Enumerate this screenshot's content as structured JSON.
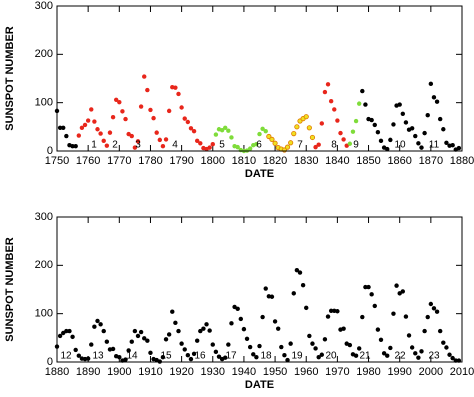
{
  "chart_data": [
    {
      "type": "scatter",
      "xlabel": "DATE",
      "ylabel": "SUNSPOT NUMBER",
      "xlim": [
        1750,
        1880
      ],
      "ylim": [
        0,
        300
      ],
      "xticks": [
        1750,
        1760,
        1770,
        1780,
        1790,
        1800,
        1810,
        1820,
        1830,
        1840,
        1850,
        1860,
        1870,
        1880
      ],
      "yticks": [
        0,
        100,
        200,
        300
      ],
      "cycle_labels": [
        "1",
        "2",
        "3",
        "4",
        "5",
        "6",
        "7",
        "8",
        "9",
        "10",
        "11"
      ],
      "series": [
        {
          "color": "#000000",
          "x": [
            1750,
            1751,
            1752,
            1753,
            1754,
            1755,
            1756,
            1848,
            1849,
            1850,
            1851,
            1852,
            1853,
            1854,
            1855,
            1856,
            1857,
            1858,
            1859,
            1860,
            1861,
            1862,
            1863,
            1864,
            1865,
            1866,
            1867,
            1868,
            1869,
            1870,
            1871,
            1872,
            1873,
            1874,
            1875,
            1876,
            1877,
            1878,
            1879
          ],
          "values": [
            83,
            48,
            48,
            31,
            12,
            10,
            10,
            124,
            96,
            66,
            64,
            54,
            39,
            21,
            7,
            4,
            23,
            55,
            94,
            96,
            77,
            59,
            44,
            47,
            31,
            16,
            7,
            37,
            74,
            139,
            111,
            102,
            66,
            45,
            17,
            11,
            12,
            3,
            6
          ]
        },
        {
          "color": "#e8261b",
          "x": [
            1757,
            1758,
            1759,
            1760,
            1761,
            1762,
            1763,
            1764,
            1765,
            1766,
            1767,
            1768,
            1769,
            1770,
            1771,
            1772,
            1773,
            1774,
            1775,
            1776,
            1777,
            1778,
            1779,
            1780,
            1781,
            1782,
            1783,
            1784,
            1785,
            1786,
            1787,
            1788,
            1789,
            1790,
            1791,
            1792,
            1793,
            1794,
            1795,
            1796,
            1797,
            1798,
            1799,
            1800,
            1833,
            1834,
            1835,
            1836,
            1837,
            1838,
            1839,
            1840,
            1841,
            1842,
            1843
          ],
          "values": [
            32,
            48,
            54,
            63,
            86,
            61,
            45,
            36,
            21,
            11,
            38,
            70,
            106,
            101,
            82,
            66,
            35,
            31,
            7,
            20,
            92,
            154,
            126,
            85,
            68,
            38,
            23,
            10,
            24,
            83,
            132,
            131,
            118,
            90,
            67,
            60,
            47,
            41,
            21,
            16,
            6,
            4,
            7,
            14,
            8,
            13,
            57,
            122,
            138,
            103,
            86,
            63,
            37,
            24,
            11
          ]
        },
        {
          "color": "#7fdc3a",
          "x": [
            1801,
            1802,
            1803,
            1804,
            1805,
            1806,
            1807,
            1808,
            1809,
            1810,
            1811,
            1812,
            1813,
            1814,
            1815,
            1816,
            1817,
            1844,
            1845,
            1846,
            1847
          ],
          "values": [
            34,
            45,
            43,
            48,
            42,
            28,
            10,
            8,
            2,
            0,
            1,
            5,
            12,
            14,
            35,
            46,
            41,
            15,
            40,
            62,
            98
          ]
        },
        {
          "color": "#f0e020",
          "x": [
            1818,
            1819,
            1820,
            1821,
            1822,
            1823,
            1824,
            1825,
            1826,
            1827,
            1828,
            1829,
            1830,
            1831,
            1832
          ],
          "values": [
            30,
            24,
            16,
            7,
            4,
            2,
            8,
            17,
            36,
            50,
            62,
            67,
            71,
            48,
            28
          ]
        }
      ]
    },
    {
      "type": "scatter",
      "xlabel": "DATE",
      "ylabel": "SUNSPOT NUMBER",
      "xlim": [
        1880,
        2010
      ],
      "ylim": [
        0,
        300
      ],
      "xticks": [
        1880,
        1890,
        1900,
        1910,
        1920,
        1930,
        1940,
        1950,
        1960,
        1970,
        1980,
        1990,
        2000,
        2010
      ],
      "yticks": [
        0,
        100,
        200,
        300
      ],
      "cycle_labels": [
        "12",
        "13",
        "14",
        "15",
        "16",
        "17",
        "18",
        "19",
        "20",
        "21",
        "22",
        "23"
      ],
      "series": [
        {
          "color": "#000000",
          "x": [
            1880,
            1881,
            1882,
            1883,
            1884,
            1885,
            1886,
            1887,
            1888,
            1889,
            1890,
            1891,
            1892,
            1893,
            1894,
            1895,
            1896,
            1897,
            1898,
            1899,
            1900,
            1901,
            1902,
            1903,
            1904,
            1905,
            1906,
            1907,
            1908,
            1909,
            1910,
            1911,
            1912,
            1913,
            1914,
            1915,
            1916,
            1917,
            1918,
            1919,
            1920,
            1921,
            1922,
            1923,
            1924,
            1925,
            1926,
            1927,
            1928,
            1929,
            1930,
            1931,
            1932,
            1933,
            1934,
            1935,
            1936,
            1937,
            1938,
            1939,
            1940,
            1941,
            1942,
            1943,
            1944,
            1945,
            1946,
            1947,
            1948,
            1949,
            1950,
            1951,
            1952,
            1953,
            1954,
            1955,
            1956,
            1957,
            1958,
            1959,
            1960,
            1961,
            1962,
            1963,
            1964,
            1965,
            1966,
            1967,
            1968,
            1969,
            1970,
            1971,
            1972,
            1973,
            1974,
            1975,
            1976,
            1977,
            1978,
            1979,
            1980,
            1981,
            1982,
            1983,
            1984,
            1985,
            1986,
            1987,
            1988,
            1989,
            1990,
            1991,
            1992,
            1993,
            1994,
            1995,
            1996,
            1997,
            1998,
            1999,
            2000,
            2001,
            2002,
            2003,
            2004,
            2005,
            2006,
            2007,
            2008,
            2009
          ],
          "values": [
            32,
            54,
            60,
            64,
            64,
            52,
            25,
            13,
            7,
            6,
            7,
            36,
            73,
            85,
            78,
            64,
            42,
            26,
            27,
            12,
            10,
            3,
            5,
            24,
            42,
            64,
            54,
            62,
            49,
            44,
            19,
            6,
            4,
            1,
            10,
            47,
            57,
            104,
            81,
            64,
            38,
            26,
            14,
            6,
            17,
            44,
            64,
            69,
            78,
            65,
            36,
            21,
            11,
            6,
            9,
            36,
            80,
            114,
            110,
            89,
            68,
            48,
            31,
            16,
            10,
            33,
            93,
            152,
            136,
            135,
            84,
            69,
            31,
            14,
            4,
            38,
            142,
            190,
            185,
            159,
            112,
            54,
            38,
            28,
            10,
            15,
            47,
            94,
            106,
            106,
            105,
            67,
            69,
            38,
            35,
            16,
            13,
            28,
            93,
            155,
            155,
            140,
            116,
            67,
            46,
            18,
            13,
            29,
            100,
            158,
            142,
            146,
            94,
            55,
            30,
            18,
            9,
            22,
            64,
            93,
            120,
            111,
            104,
            64,
            40,
            30,
            15,
            8,
            3,
            3
          ]
        }
      ]
    }
  ]
}
